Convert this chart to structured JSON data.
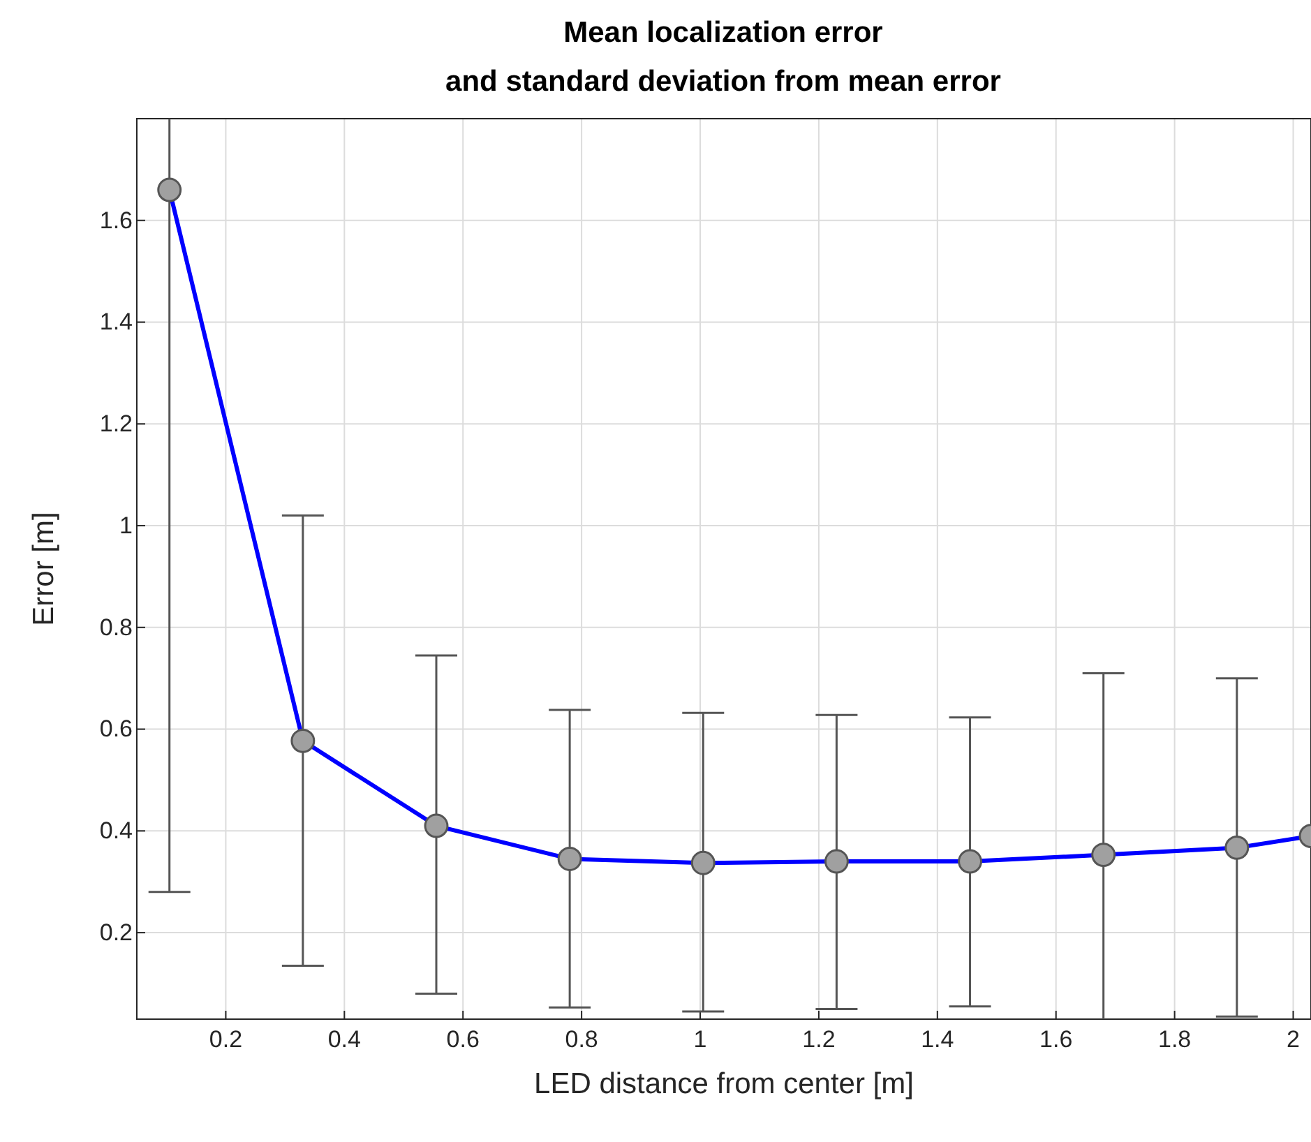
{
  "chart_data": {
    "type": "line",
    "title": "Mean localization error",
    "subtitle": "and standard deviation from mean error",
    "xlabel": "LED distance from center [m]",
    "ylabel": "Error [m]",
    "x": [
      0.105,
      0.33,
      0.555,
      0.78,
      1.005,
      1.23,
      1.455,
      1.68,
      1.905,
      2.03
    ],
    "series": [
      {
        "color": "#0000ff",
        "values": [
          1.66,
          0.577,
          0.41,
          0.345,
          0.337,
          0.34,
          0.34,
          0.353,
          0.367,
          0.39
        ],
        "errors": [
          [
            0.28,
            1.8
          ],
          [
            0.135,
            1.02
          ],
          [
            0.08,
            0.745
          ],
          [
            0.053,
            0.638
          ],
          [
            0.045,
            0.632
          ],
          [
            0.05,
            0.628
          ],
          [
            0.055,
            0.623
          ],
          [
            0.03,
            0.71
          ],
          [
            0.035,
            0.7
          ],
          null
        ]
      }
    ],
    "xlim": [
      0.05,
      2.03
    ],
    "ylim": [
      0.03,
      1.8
    ],
    "xticks": [
      0.2,
      0.4,
      0.6,
      0.8,
      1,
      1.2,
      1.4,
      1.6,
      1.8,
      2
    ],
    "yticks": [
      0.2,
      0.4,
      0.6,
      0.8,
      1,
      1.2,
      1.4,
      1.6
    ],
    "grid": true,
    "marker": "circle",
    "line_style": "solid"
  }
}
